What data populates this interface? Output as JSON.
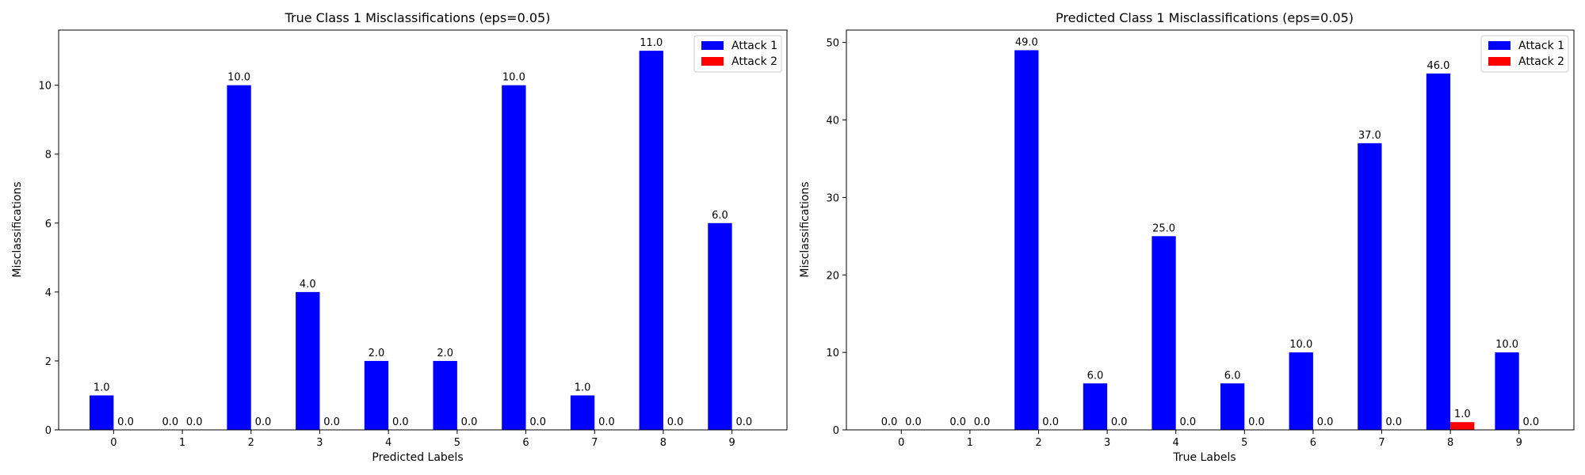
{
  "chart_data": [
    {
      "type": "bar",
      "title": "True Class 1 Misclassifications (eps=0.05)",
      "xlabel": "Predicted Labels",
      "ylabel": "Misclassifications",
      "categories": [
        "0",
        "1",
        "2",
        "3",
        "4",
        "5",
        "6",
        "7",
        "8",
        "9"
      ],
      "series": [
        {
          "name": "Attack 1",
          "color": "#0000ff",
          "values": [
            1,
            0,
            10,
            4,
            2,
            2,
            10,
            1,
            11,
            6
          ],
          "labels": [
            "1.0",
            "0.0",
            "10.0",
            "4.0",
            "2.0",
            "2.0",
            "10.0",
            "1.0",
            "11.0",
            "6.0"
          ]
        },
        {
          "name": "Attack 2",
          "color": "#ff0000",
          "values": [
            0,
            0,
            0,
            0,
            0,
            0,
            0,
            0,
            0,
            0
          ],
          "labels": [
            "0.0",
            "0.0",
            "0.0",
            "0.0",
            "0.0",
            "0.0",
            "0.0",
            "0.0",
            "0.0",
            "0.0"
          ]
        }
      ],
      "yticks": [
        0,
        2,
        4,
        6,
        8,
        10
      ],
      "ylim": [
        0,
        11.6
      ],
      "grid": false,
      "legend": "top-right"
    },
    {
      "type": "bar",
      "title": "Predicted Class 1 Misclassifications (eps=0.05)",
      "xlabel": "True Labels",
      "ylabel": "Misclassifications",
      "categories": [
        "0",
        "1",
        "2",
        "3",
        "4",
        "5",
        "6",
        "7",
        "8",
        "9"
      ],
      "series": [
        {
          "name": "Attack 1",
          "color": "#0000ff",
          "values": [
            0,
            0,
            49,
            6,
            25,
            6,
            10,
            37,
            46,
            10
          ],
          "labels": [
            "0.0",
            "0.0",
            "49.0",
            "6.0",
            "25.0",
            "6.0",
            "10.0",
            "37.0",
            "46.0",
            "10.0"
          ]
        },
        {
          "name": "Attack 2",
          "color": "#ff0000",
          "values": [
            0,
            0,
            0,
            0,
            0,
            0,
            0,
            0,
            1,
            0
          ],
          "labels": [
            "0.0",
            "0.0",
            "0.0",
            "0.0",
            "0.0",
            "0.0",
            "0.0",
            "0.0",
            "1.0",
            "0.0"
          ]
        }
      ],
      "yticks": [
        0,
        10,
        20,
        30,
        40,
        50
      ],
      "ylim": [
        0,
        51.6
      ],
      "grid": false,
      "legend": "top-right"
    }
  ]
}
